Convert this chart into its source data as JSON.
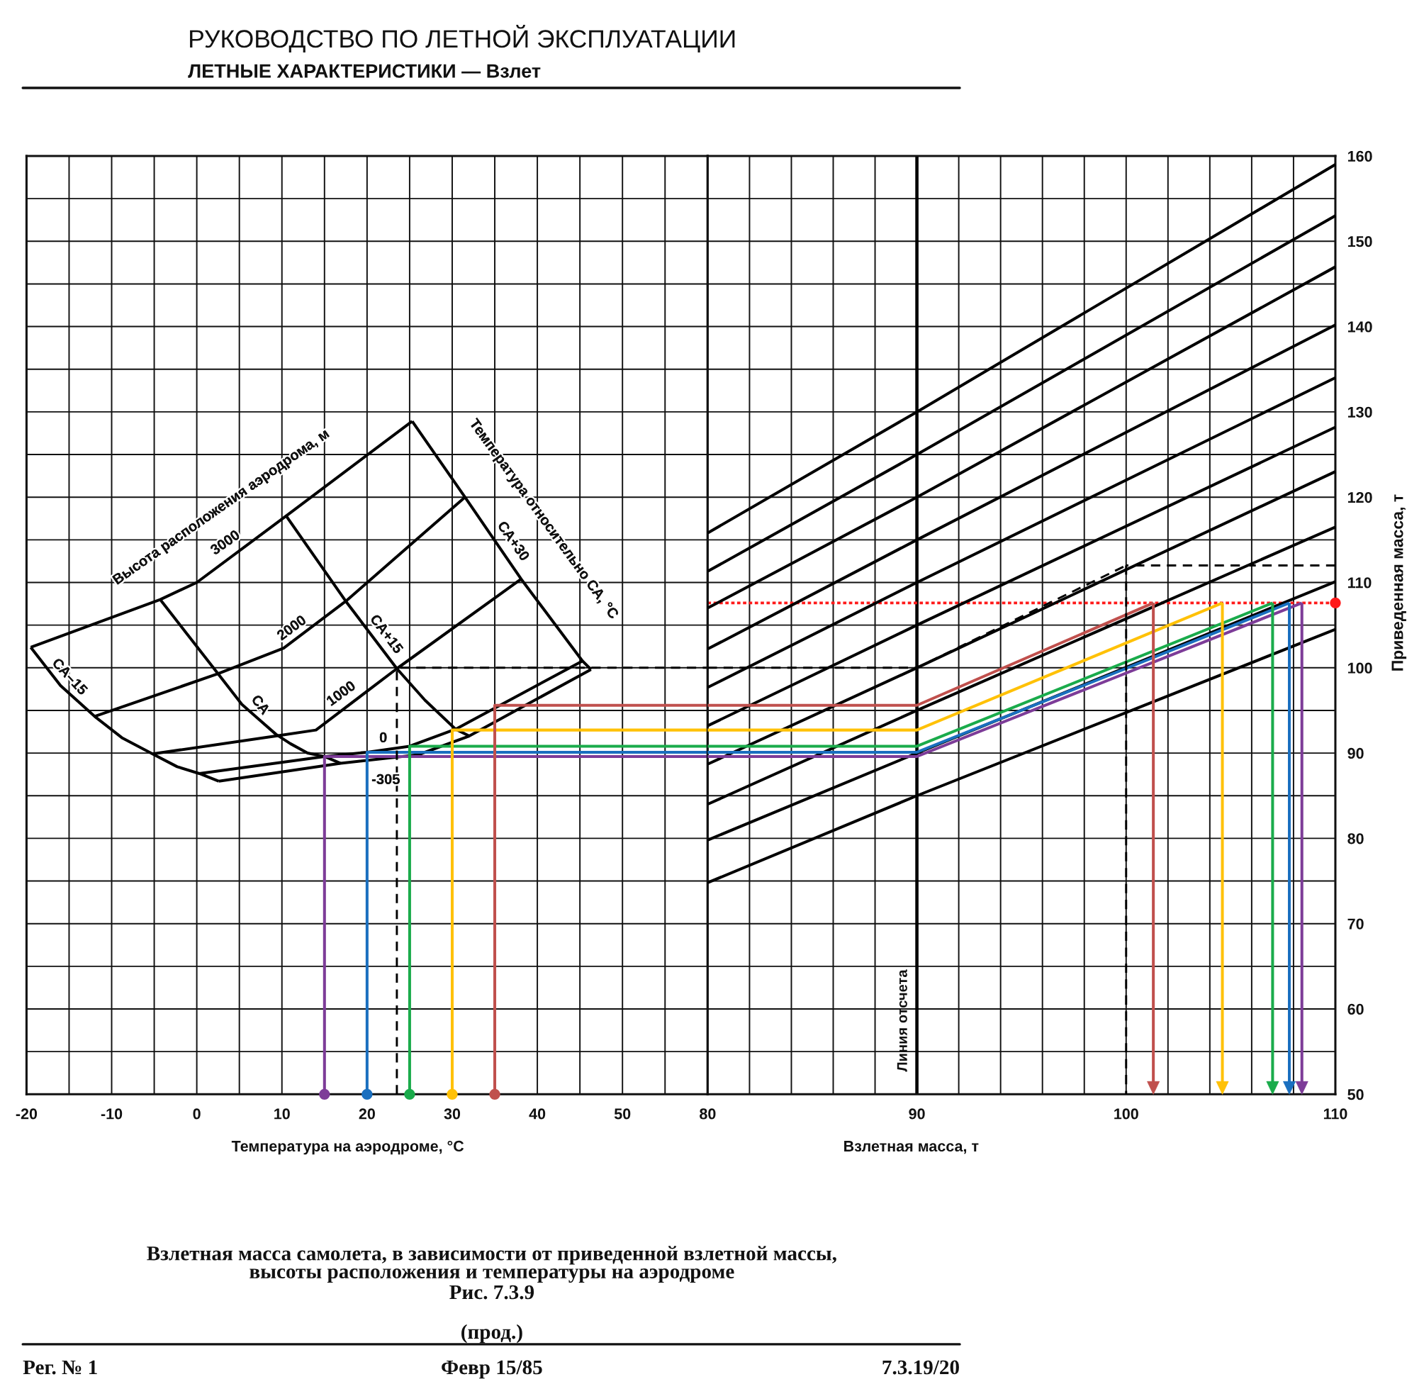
{
  "chart_data": [
    {
      "type": "line",
      "title": "РУКОВОДСТВО ПО ЛЕТНОЙ ЭКСПЛУАТАЦИИ",
      "subtitle": "ЛЕТНЫЕ ХАРАКТЕРИСТИКИ — Взлет",
      "xlabel": "Температура на аэродроме, °С",
      "xlim": [
        -20,
        60
      ],
      "xticks": [
        -20,
        {
          "value": -15,
          "label": null
        },
        -10,
        {
          "value": -5,
          "label": null
        },
        0,
        {
          "value": 5,
          "label": null
        },
        10,
        {
          "value": 15,
          "label": null
        },
        20,
        {
          "value": 25,
          "label": null
        },
        30,
        {
          "value": 35,
          "label": null
        },
        40,
        {
          "value": 45,
          "label": null
        },
        50,
        {
          "value": 55,
          "label": null
        }
      ],
      "ylim": [
        50,
        160
      ],
      "yticks": [
        50,
        {
          "value": 55,
          "label": null
        },
        60,
        {
          "value": 65,
          "label": null
        },
        70,
        {
          "value": 75,
          "label": null
        },
        80,
        {
          "value": 85,
          "label": null
        },
        90,
        {
          "value": 95,
          "label": null
        },
        100,
        {
          "value": 105,
          "label": null
        },
        110,
        {
          "value": 115,
          "label": null
        },
        120,
        {
          "value": 125,
          "label": null
        },
        130,
        {
          "value": 135,
          "label": null
        },
        140,
        {
          "value": 145,
          "label": null
        },
        150,
        {
          "value": 155,
          "label": null
        },
        160
      ],
      "tick_labels": "x",
      "grid": true,
      "series": [
        {
          "color": "#000000",
          "x": [
            -19.5,
            -4.3,
            0,
            10.5,
            25.3
          ],
          "values": [
            102.4,
            108.0,
            110.0,
            117.8,
            128.9
          ]
        },
        {
          "color": "#000000",
          "x": [
            -12.0,
            2.5,
            10.2,
            17.5,
            31.5
          ],
          "values": [
            94.3,
            99.3,
            102.3,
            107.8,
            120.0
          ]
        },
        {
          "color": "#000000",
          "x": [
            -5.2,
            9.3,
            14.0,
            23.5,
            38.1
          ],
          "values": [
            89.9,
            92.0,
            92.7,
            99.9,
            110.4
          ]
        },
        {
          "color": "#000000",
          "x": [
            0.3,
            15,
            20,
            25,
            30.4,
            45.3
          ],
          "values": [
            87.6,
            89.6,
            90.1,
            90.8,
            92.8,
            100.8
          ]
        },
        {
          "color": "#000000",
          "x": [
            2.6,
            16.9,
            26,
            32,
            46.3
          ],
          "values": [
            86.7,
            88.8,
            89.8,
            92.0,
            99.8
          ]
        },
        {
          "color": "#000000",
          "x": [
            -19.5,
            -16.0,
            -12.0,
            -8.8,
            -5.2,
            -2.3,
            0.3,
            2.6
          ],
          "values": [
            102.4,
            97.9,
            94.3,
            91.8,
            89.9,
            88.4,
            87.6,
            86.7
          ]
        },
        {
          "color": "#000000",
          "x": [
            -4.3,
            2.5,
            5.3,
            9.3,
            11.0,
            13.0,
            15,
            16.9
          ],
          "values": [
            108.0,
            99.3,
            95.7,
            92.2,
            91.1,
            90.0,
            89.6,
            88.8
          ]
        },
        {
          "color": "#000000",
          "x": [
            10.5,
            17.5,
            23.5,
            26.8,
            30.4,
            32.0
          ],
          "values": [
            117.8,
            107.8,
            99.9,
            96.2,
            92.8,
            92.0
          ]
        },
        {
          "color": "#000000",
          "x": [
            25.3,
            31.5,
            38.1,
            45.3,
            46.3
          ],
          "values": [
            128.9,
            120.0,
            110.4,
            100.8,
            99.8
          ]
        },
        {
          "color": "#7d3c98",
          "x": [
            15,
            15,
            60
          ],
          "values": [
            50,
            89.6,
            89.6
          ]
        },
        {
          "color": "#1a6fbf",
          "x": [
            20,
            20,
            60
          ],
          "values": [
            50,
            90.1,
            90.1
          ]
        },
        {
          "color": "#1aab4b",
          "x": [
            25,
            25,
            60
          ],
          "values": [
            50,
            90.8,
            90.8
          ]
        },
        {
          "color": "#ffc107",
          "x": [
            30,
            30,
            60
          ],
          "values": [
            50,
            92.7,
            92.7
          ]
        },
        {
          "color": "#c0504d",
          "x": [
            35,
            35,
            60
          ],
          "values": [
            50,
            95.6,
            95.6
          ]
        },
        {
          "color": "#000000",
          "line_style": "dashed",
          "x": [
            23.5,
            23.5,
            60
          ],
          "values": [
            50,
            100,
            100
          ]
        },
        {
          "type": "scatter",
          "marker": "circle",
          "x": [
            15,
            20,
            25,
            30,
            35
          ],
          "values": [
            50,
            50,
            50,
            50,
            50
          ],
          "colors": [
            "#7d3c98",
            "#1a6fbf",
            "#1aab4b",
            "#ffc107",
            "#c0504d"
          ]
        }
      ],
      "annotations": [
        "Высота расположения аэродрома, м",
        "3000",
        "2000",
        "1000",
        "0",
        "-305",
        "СА–15",
        "СА",
        "СА+15",
        "СА+30",
        "Температура относительно СА, °С",
        "Взлетная масса самолета, в зависимости от приведенной взлетной массы,\nвысоты расположения и температуры на аэродроме",
        "Рис. 7.3.9",
        "(прод.)",
        "Рег. № 1",
        "Февр 15/85",
        "7.3.19/20"
      ]
    },
    {
      "type": "line",
      "xlabel": "Взлетная масса, т",
      "ylabel": "Приведенная масса, т",
      "xlim": [
        80,
        110
      ],
      "xticks": [
        80,
        {
          "value": 82,
          "label": null
        },
        {
          "value": 84,
          "label": null
        },
        {
          "value": 86,
          "label": null
        },
        {
          "value": 88,
          "label": null
        },
        90,
        {
          "value": 92,
          "label": null
        },
        {
          "value": 94,
          "label": null
        },
        {
          "value": 96,
          "label": null
        },
        {
          "value": 98,
          "label": null
        },
        100,
        {
          "value": 102,
          "label": null
        },
        {
          "value": 104,
          "label": null
        },
        {
          "value": 106,
          "label": null
        },
        {
          "value": 108,
          "label": null
        },
        110
      ],
      "ylim": [
        50,
        160
      ],
      "yticks": [
        50,
        {
          "value": 55,
          "label": null
        },
        60,
        {
          "value": 65,
          "label": null
        },
        70,
        {
          "value": 75,
          "label": null
        },
        80,
        {
          "value": 85,
          "label": null
        },
        90,
        {
          "value": 95,
          "label": null
        },
        100,
        {
          "value": 105,
          "label": null
        },
        110,
        {
          "value": 115,
          "label": null
        },
        120,
        {
          "value": 125,
          "label": null
        },
        130,
        {
          "value": 135,
          "label": null
        },
        140,
        {
          "value": 145,
          "label": null
        },
        150,
        {
          "value": 155,
          "label": null
        },
        160
      ],
      "grid": true,
      "series": [
        {
          "color": "#000000",
          "x": [
            80,
            90,
            110
          ],
          "values": [
            115.8,
            130,
            159
          ]
        },
        {
          "color": "#000000",
          "x": [
            80,
            90,
            110
          ],
          "values": [
            111.3,
            125,
            153
          ]
        },
        {
          "color": "#000000",
          "x": [
            80,
            90,
            110
          ],
          "values": [
            107,
            120,
            147
          ]
        },
        {
          "color": "#000000",
          "x": [
            80,
            90,
            110
          ],
          "values": [
            102.2,
            115,
            140.2
          ]
        },
        {
          "color": "#000000",
          "x": [
            80,
            90,
            110
          ],
          "values": [
            97.7,
            110,
            134
          ]
        },
        {
          "color": "#000000",
          "x": [
            80,
            90,
            110
          ],
          "values": [
            93.2,
            105,
            128.2
          ]
        },
        {
          "color": "#000000",
          "x": [
            80,
            90,
            110
          ],
          "values": [
            88.7,
            100,
            123
          ]
        },
        {
          "color": "#000000",
          "x": [
            80,
            90,
            110
          ],
          "values": [
            84,
            95,
            116.5
          ]
        },
        {
          "color": "#000000",
          "x": [
            80,
            90,
            110
          ],
          "values": [
            79.8,
            90,
            110.1
          ]
        },
        {
          "color": "#000000",
          "x": [
            80,
            90,
            110
          ],
          "values": [
            74.8,
            85,
            104.5
          ]
        },
        {
          "color": "#7d3c98",
          "x": [
            80,
            90,
            108.4
          ],
          "values": [
            89.6,
            89.6,
            107.6
          ]
        },
        {
          "color": "#1a6fbf",
          "x": [
            80,
            90,
            107.8
          ],
          "values": [
            90.1,
            90.1,
            107.6
          ]
        },
        {
          "color": "#1aab4b",
          "x": [
            80,
            90,
            107.0
          ],
          "values": [
            90.8,
            90.8,
            107.6
          ]
        },
        {
          "color": "#ffc107",
          "x": [
            80,
            90,
            104.6
          ],
          "values": [
            92.7,
            92.7,
            107.6
          ]
        },
        {
          "color": "#c0504d",
          "x": [
            80,
            90,
            101.3
          ],
          "values": [
            95.6,
            95.6,
            107.6
          ]
        },
        {
          "color": "#000000",
          "line_style": "dashed",
          "x": [
            80,
            90,
            100
          ],
          "values": [
            100,
            100,
            112
          ]
        },
        {
          "color": "#000000",
          "line_style": "dashed",
          "x": [
            110,
            100
          ],
          "values": [
            112,
            112
          ]
        },
        {
          "color": "#000000",
          "line_style": "dashed",
          "x": [
            100,
            100
          ],
          "values": [
            112,
            50
          ]
        },
        {
          "type": "scatter",
          "marker": "circle",
          "x": [
            110
          ],
          "values": [
            107.6
          ],
          "color": "#ff1a1a"
        }
      ],
      "ref_lines": [
        {
          "axis": "x",
          "value": 90,
          "label": "Линия отсчета",
          "color": "#000000"
        },
        {
          "axis": "y",
          "value": 107.6,
          "color": "#ff1a1a",
          "line_style": "dotted"
        }
      ]
    }
  ]
}
